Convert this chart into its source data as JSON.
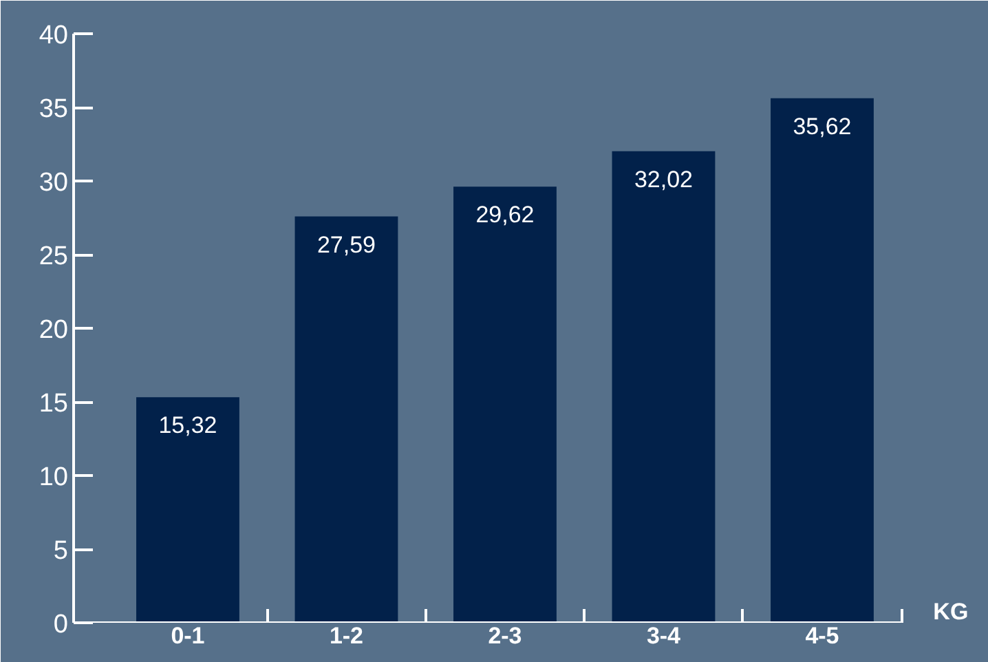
{
  "chart_data": {
    "type": "bar",
    "xlabel": "KG",
    "categories": [
      "0-1",
      "1-2",
      "2-3",
      "3-4",
      "4-5"
    ],
    "values": [
      15.32,
      27.59,
      29.62,
      32.02,
      35.62
    ],
    "color": "#02214a",
    "value_labels": [
      "15,32",
      "27,59",
      "29,62",
      "32,02",
      "35,62"
    ],
    "ylim": [
      0,
      40
    ],
    "yticks": [
      0,
      5,
      10,
      15,
      20,
      25,
      30,
      35,
      40
    ],
    "grid": false
  }
}
